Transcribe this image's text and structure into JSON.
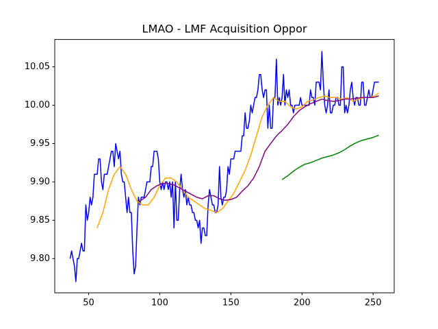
{
  "chart_data": {
    "type": "line",
    "title": "LMAO - LMF Acquisition Oppor",
    "xlim": [
      26.15,
      264.85
    ],
    "xticks": [
      50,
      100,
      150,
      200,
      250
    ],
    "ylim": [
      9.7554,
      10.0857
    ],
    "yticks": [
      {
        "value": 9.8,
        "label": "9.80"
      },
      9.85,
      {
        "value": 9.9,
        "label": "9.90"
      },
      9.95,
      {
        "value": 10,
        "label": "10.00"
      },
      10.05
    ],
    "series": [
      {
        "color": "#0000ff",
        "x": [
          37,
          38,
          39,
          40,
          41,
          42,
          43,
          44,
          45,
          46,
          47,
          48,
          49,
          50,
          51,
          52,
          53,
          54,
          55,
          56,
          57,
          58,
          59,
          60,
          61,
          62,
          63,
          64,
          65,
          66,
          67,
          68,
          69,
          70,
          71,
          72,
          73,
          74,
          75,
          76,
          77,
          78,
          79,
          80,
          81,
          82,
          83,
          84,
          85,
          86,
          87,
          88,
          89,
          90,
          91,
          92,
          93,
          94,
          95,
          96,
          97,
          98,
          99,
          100,
          101,
          102,
          103,
          104,
          105,
          106,
          107,
          108,
          109,
          110,
          111,
          112,
          113,
          114,
          115,
          116,
          117,
          118,
          119,
          120,
          121,
          122,
          123,
          124,
          125,
          126,
          127,
          128,
          129,
          130,
          131,
          132,
          133,
          134,
          135,
          136,
          137,
          138,
          139,
          140,
          141,
          142,
          143,
          144,
          145,
          146,
          147,
          148,
          149,
          150,
          151,
          152,
          153,
          154,
          155,
          156,
          157,
          158,
          159,
          160,
          161,
          162,
          163,
          164,
          165,
          166,
          167,
          168,
          169,
          170,
          171,
          172,
          173,
          174,
          175,
          176,
          177,
          178,
          179,
          180,
          181,
          182,
          183,
          184,
          185,
          186,
          187,
          188,
          189,
          190,
          191,
          192,
          193,
          194,
          195,
          196,
          197,
          198,
          199,
          200,
          201,
          202,
          203,
          204,
          205,
          206,
          207,
          208,
          209,
          210,
          211,
          212,
          213,
          214,
          215,
          216,
          217,
          218,
          219,
          220,
          221,
          222,
          223,
          224,
          225,
          226,
          227,
          228,
          229,
          230,
          231,
          232,
          233,
          234,
          235,
          236,
          237,
          238,
          239,
          240,
          241,
          242,
          243,
          244,
          245,
          246,
          247,
          248,
          249,
          250,
          251,
          252,
          253,
          254
        ],
        "values": [
          9.8,
          9.81,
          9.8,
          9.79,
          9.77,
          9.8,
          9.8,
          9.81,
          9.82,
          9.81,
          9.81,
          9.87,
          9.85,
          9.86,
          9.88,
          9.87,
          9.88,
          9.91,
          9.91,
          9.91,
          9.93,
          9.93,
          9.9,
          9.89,
          9.91,
          9.91,
          9.91,
          9.92,
          9.93,
          9.94,
          9.94,
          9.92,
          9.95,
          9.94,
          9.93,
          9.94,
          9.91,
          9.9,
          9.9,
          9.88,
          9.86,
          9.88,
          9.86,
          9.86,
          9.81,
          9.78,
          9.79,
          9.84,
          9.88,
          9.87,
          9.88,
          9.88,
          9.88,
          9.89,
          9.9,
          9.9,
          9.9,
          9.92,
          9.92,
          9.94,
          9.94,
          9.94,
          9.93,
          9.9,
          9.89,
          9.9,
          9.89,
          9.9,
          9.9,
          9.89,
          9.9,
          9.88,
          9.9,
          9.84,
          9.9,
          9.85,
          9.85,
          9.89,
          9.91,
          9.89,
          9.88,
          9.89,
          9.87,
          9.88,
          9.87,
          9.87,
          9.86,
          9.86,
          9.85,
          9.85,
          9.84,
          9.85,
          9.82,
          9.84,
          9.84,
          9.83,
          9.83,
          9.87,
          9.89,
          9.88,
          9.87,
          9.87,
          9.86,
          9.86,
          9.87,
          9.92,
          9.88,
          9.87,
          9.88,
          9.88,
          9.89,
          9.92,
          9.91,
          9.93,
          9.93,
          9.93,
          9.94,
          9.94,
          9.94,
          9.94,
          9.94,
          9.96,
          9.96,
          9.99,
          9.97,
          9.97,
          9.98,
          10.0,
          9.99,
          10.0,
          10.01,
          10.01,
          10.02,
          10.04,
          10.04,
          10.02,
          10.01,
          10.02,
          10.02,
          9.97,
          10.0,
          9.97,
          9.97,
          10.01,
          10.01,
          10.06,
          10.0,
          10.01,
          10.0,
          10.01,
          10.04,
          10.0,
          10.02,
          10.01,
          10.02,
          10.0,
          10.0,
          9.99,
          10.0,
          10.0,
          10.0,
          10.0,
          10.01,
          10.0,
          10.0,
          10.0,
          10.0,
          10.0,
          10.0,
          10.02,
          10.01,
          10.01,
          10.0,
          10.03,
          10.03,
          10.03,
          10.02,
          10.07,
          10.03,
          10.0,
          9.99,
          10.0,
          10.02,
          9.99,
          9.99,
          10.0,
          10.0,
          10.01,
          10.01,
          10.0,
          10.0,
          10.05,
          10.05,
          9.99,
          10.0,
          9.99,
          10.0,
          10.02,
          10.03,
          10.01,
          10.0,
          10.01,
          10.01,
          10.0,
          10.0,
          10.03,
          10.03,
          10.0,
          10.0,
          10.01,
          10.02,
          10.01,
          10.01,
          10.02,
          10.03,
          10.03,
          10.03,
          10.03
        ]
      },
      {
        "color": "#ffa500",
        "x": [
          56,
          60,
          64,
          68,
          72,
          76,
          80,
          84,
          88,
          92,
          96,
          100,
          104,
          108,
          112,
          116,
          120,
          124,
          128,
          132,
          136,
          140,
          144,
          148,
          152,
          156,
          160,
          164,
          168,
          172,
          176,
          180,
          184,
          188,
          192,
          196,
          200,
          204,
          208,
          212,
          216,
          220,
          224,
          228,
          232,
          236,
          240,
          244,
          248,
          252,
          254
        ],
        "values": [
          9.84,
          9.86,
          9.89,
          9.91,
          9.92,
          9.91,
          9.89,
          9.875,
          9.87,
          9.87,
          9.88,
          9.895,
          9.905,
          9.905,
          9.9,
          9.89,
          9.88,
          9.875,
          9.87,
          9.865,
          9.863,
          9.86,
          9.865,
          9.875,
          9.885,
          9.9,
          9.915,
          9.935,
          9.96,
          9.985,
          10.0,
          10.01,
          10.005,
          10.005,
          9.998,
          9.995,
          9.998,
          10.005,
          10.007,
          10.01,
          10.012,
          10.01,
          10.01,
          10.008,
          10.01,
          10.005,
          10.008,
          10.01,
          10.01,
          10.013,
          10.016
        ]
      },
      {
        "color": "#800080",
        "x": [
          86,
          90,
          94,
          98,
          102,
          106,
          110,
          114,
          118,
          122,
          126,
          130,
          134,
          138,
          142,
          146,
          150,
          154,
          158,
          162,
          166,
          170,
          174,
          178,
          182,
          186,
          190,
          194,
          198,
          202,
          206,
          210,
          214,
          218,
          222,
          226,
          230,
          234,
          238,
          242,
          246,
          250,
          254
        ],
        "values": [
          9.875,
          9.88,
          9.89,
          9.895,
          9.898,
          9.898,
          9.896,
          9.892,
          9.888,
          9.884,
          9.88,
          9.878,
          9.882,
          9.882,
          9.878,
          9.876,
          9.877,
          9.88,
          9.888,
          9.895,
          9.905,
          9.92,
          9.94,
          9.95,
          9.96,
          9.967,
          9.975,
          9.985,
          9.993,
          9.998,
          10.002,
          10.005,
          10.008,
          10.006,
          10.005,
          10.006,
          10.008,
          10.008,
          10.009,
          10.01,
          10.01,
          10.01,
          10.012
        ]
      },
      {
        "color": "#008000",
        "x": [
          186,
          190,
          194,
          198,
          202,
          206,
          210,
          214,
          218,
          222,
          226,
          230,
          234,
          238,
          242,
          246,
          250,
          254
        ],
        "values": [
          9.903,
          9.908,
          9.914,
          9.919,
          9.923,
          9.925,
          9.928,
          9.931,
          9.933,
          9.935,
          9.938,
          9.942,
          9.947,
          9.951,
          9.954,
          9.956,
          9.958,
          9.961
        ]
      }
    ]
  }
}
